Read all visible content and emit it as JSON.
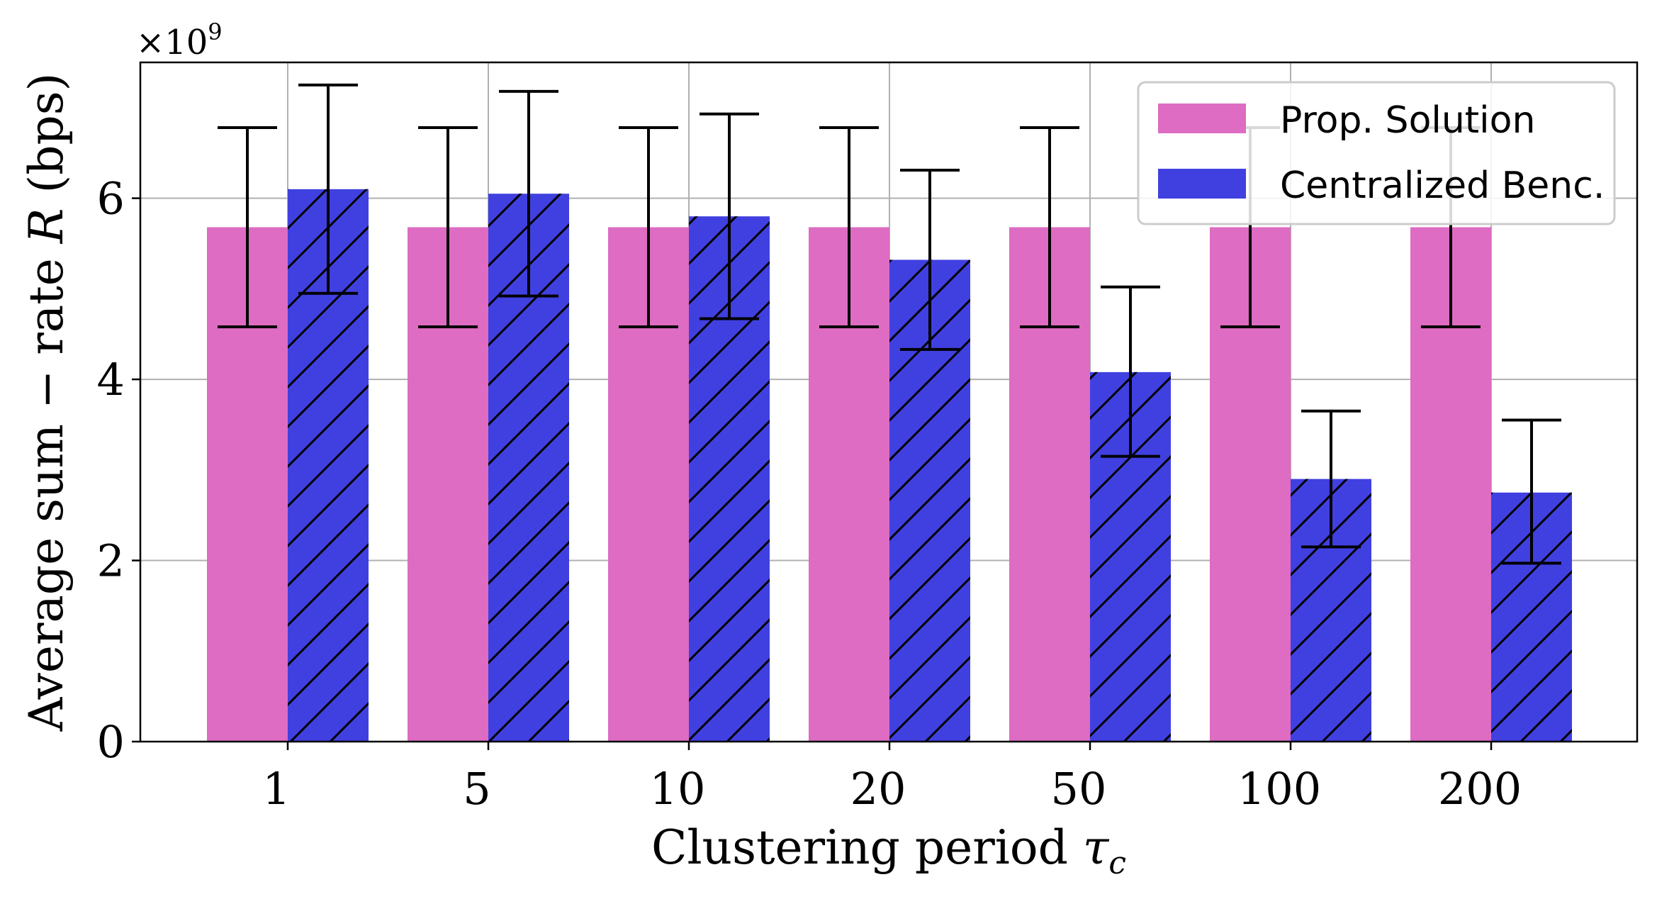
{
  "chart_data": {
    "type": "bar",
    "title": "",
    "xlabel": "Clustering period",
    "xlabel_symbol": "τ",
    "xlabel_subscript": "c",
    "ylabel": "Average sum − rate",
    "ylabel_symbol": "R",
    "ylabel_unit": "(bps)",
    "y_multiplier_base": "×10",
    "y_multiplier_exp": "9",
    "ylim": [
      0,
      7.5
    ],
    "yticks": [
      0,
      2,
      4,
      6
    ],
    "ytick_labels": [
      "0",
      "2",
      "4",
      "6"
    ],
    "grid": true,
    "legend_position": "top-right",
    "categories": [
      "1",
      "5",
      "10",
      "20",
      "50",
      "100",
      "200"
    ],
    "series": [
      {
        "name": "Prop. Solution",
        "color": "#dd6cc2",
        "hatch": false,
        "values": [
          5.68,
          5.68,
          5.68,
          5.68,
          5.68,
          5.68,
          5.68
        ],
        "err_low": [
          4.58,
          4.58,
          4.58,
          4.58,
          4.58,
          4.58,
          4.58
        ],
        "err_high": [
          6.78,
          6.78,
          6.78,
          6.78,
          6.78,
          6.78,
          6.78
        ]
      },
      {
        "name": "Centralized Benc.",
        "color": "#4040e0",
        "hatch": true,
        "values": [
          6.1,
          6.05,
          5.8,
          5.32,
          4.08,
          2.9,
          2.75
        ],
        "err_low": [
          4.95,
          4.92,
          4.67,
          4.33,
          3.15,
          2.15,
          1.97
        ],
        "err_high": [
          7.25,
          7.18,
          6.93,
          6.31,
          5.02,
          3.65,
          3.55
        ]
      }
    ]
  }
}
